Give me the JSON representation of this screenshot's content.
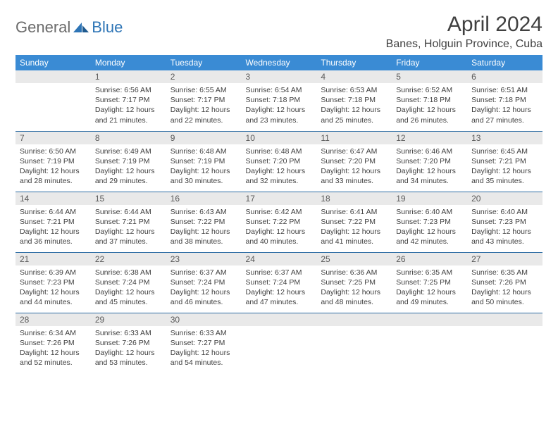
{
  "brand": {
    "general": "General",
    "blue": "Blue"
  },
  "title": "April 2024",
  "location": "Banes, Holguin Province, Cuba",
  "colors": {
    "header_bg": "#3a8bd4",
    "header_text": "#ffffff",
    "daynum_bg": "#e9e9e9",
    "text": "#404040",
    "rule": "#2e6da4"
  },
  "weekdays": [
    "Sunday",
    "Monday",
    "Tuesday",
    "Wednesday",
    "Thursday",
    "Friday",
    "Saturday"
  ],
  "weeks": [
    [
      {
        "n": "",
        "lines": [
          "",
          "",
          "",
          ""
        ]
      },
      {
        "n": "1",
        "lines": [
          "Sunrise: 6:56 AM",
          "Sunset: 7:17 PM",
          "Daylight: 12 hours",
          "and 21 minutes."
        ]
      },
      {
        "n": "2",
        "lines": [
          "Sunrise: 6:55 AM",
          "Sunset: 7:17 PM",
          "Daylight: 12 hours",
          "and 22 minutes."
        ]
      },
      {
        "n": "3",
        "lines": [
          "Sunrise: 6:54 AM",
          "Sunset: 7:18 PM",
          "Daylight: 12 hours",
          "and 23 minutes."
        ]
      },
      {
        "n": "4",
        "lines": [
          "Sunrise: 6:53 AM",
          "Sunset: 7:18 PM",
          "Daylight: 12 hours",
          "and 25 minutes."
        ]
      },
      {
        "n": "5",
        "lines": [
          "Sunrise: 6:52 AM",
          "Sunset: 7:18 PM",
          "Daylight: 12 hours",
          "and 26 minutes."
        ]
      },
      {
        "n": "6",
        "lines": [
          "Sunrise: 6:51 AM",
          "Sunset: 7:18 PM",
          "Daylight: 12 hours",
          "and 27 minutes."
        ]
      }
    ],
    [
      {
        "n": "7",
        "lines": [
          "Sunrise: 6:50 AM",
          "Sunset: 7:19 PM",
          "Daylight: 12 hours",
          "and 28 minutes."
        ]
      },
      {
        "n": "8",
        "lines": [
          "Sunrise: 6:49 AM",
          "Sunset: 7:19 PM",
          "Daylight: 12 hours",
          "and 29 minutes."
        ]
      },
      {
        "n": "9",
        "lines": [
          "Sunrise: 6:48 AM",
          "Sunset: 7:19 PM",
          "Daylight: 12 hours",
          "and 30 minutes."
        ]
      },
      {
        "n": "10",
        "lines": [
          "Sunrise: 6:48 AM",
          "Sunset: 7:20 PM",
          "Daylight: 12 hours",
          "and 32 minutes."
        ]
      },
      {
        "n": "11",
        "lines": [
          "Sunrise: 6:47 AM",
          "Sunset: 7:20 PM",
          "Daylight: 12 hours",
          "and 33 minutes."
        ]
      },
      {
        "n": "12",
        "lines": [
          "Sunrise: 6:46 AM",
          "Sunset: 7:20 PM",
          "Daylight: 12 hours",
          "and 34 minutes."
        ]
      },
      {
        "n": "13",
        "lines": [
          "Sunrise: 6:45 AM",
          "Sunset: 7:21 PM",
          "Daylight: 12 hours",
          "and 35 minutes."
        ]
      }
    ],
    [
      {
        "n": "14",
        "lines": [
          "Sunrise: 6:44 AM",
          "Sunset: 7:21 PM",
          "Daylight: 12 hours",
          "and 36 minutes."
        ]
      },
      {
        "n": "15",
        "lines": [
          "Sunrise: 6:44 AM",
          "Sunset: 7:21 PM",
          "Daylight: 12 hours",
          "and 37 minutes."
        ]
      },
      {
        "n": "16",
        "lines": [
          "Sunrise: 6:43 AM",
          "Sunset: 7:22 PM",
          "Daylight: 12 hours",
          "and 38 minutes."
        ]
      },
      {
        "n": "17",
        "lines": [
          "Sunrise: 6:42 AM",
          "Sunset: 7:22 PM",
          "Daylight: 12 hours",
          "and 40 minutes."
        ]
      },
      {
        "n": "18",
        "lines": [
          "Sunrise: 6:41 AM",
          "Sunset: 7:22 PM",
          "Daylight: 12 hours",
          "and 41 minutes."
        ]
      },
      {
        "n": "19",
        "lines": [
          "Sunrise: 6:40 AM",
          "Sunset: 7:23 PM",
          "Daylight: 12 hours",
          "and 42 minutes."
        ]
      },
      {
        "n": "20",
        "lines": [
          "Sunrise: 6:40 AM",
          "Sunset: 7:23 PM",
          "Daylight: 12 hours",
          "and 43 minutes."
        ]
      }
    ],
    [
      {
        "n": "21",
        "lines": [
          "Sunrise: 6:39 AM",
          "Sunset: 7:23 PM",
          "Daylight: 12 hours",
          "and 44 minutes."
        ]
      },
      {
        "n": "22",
        "lines": [
          "Sunrise: 6:38 AM",
          "Sunset: 7:24 PM",
          "Daylight: 12 hours",
          "and 45 minutes."
        ]
      },
      {
        "n": "23",
        "lines": [
          "Sunrise: 6:37 AM",
          "Sunset: 7:24 PM",
          "Daylight: 12 hours",
          "and 46 minutes."
        ]
      },
      {
        "n": "24",
        "lines": [
          "Sunrise: 6:37 AM",
          "Sunset: 7:24 PM",
          "Daylight: 12 hours",
          "and 47 minutes."
        ]
      },
      {
        "n": "25",
        "lines": [
          "Sunrise: 6:36 AM",
          "Sunset: 7:25 PM",
          "Daylight: 12 hours",
          "and 48 minutes."
        ]
      },
      {
        "n": "26",
        "lines": [
          "Sunrise: 6:35 AM",
          "Sunset: 7:25 PM",
          "Daylight: 12 hours",
          "and 49 minutes."
        ]
      },
      {
        "n": "27",
        "lines": [
          "Sunrise: 6:35 AM",
          "Sunset: 7:26 PM",
          "Daylight: 12 hours",
          "and 50 minutes."
        ]
      }
    ],
    [
      {
        "n": "28",
        "lines": [
          "Sunrise: 6:34 AM",
          "Sunset: 7:26 PM",
          "Daylight: 12 hours",
          "and 52 minutes."
        ]
      },
      {
        "n": "29",
        "lines": [
          "Sunrise: 6:33 AM",
          "Sunset: 7:26 PM",
          "Daylight: 12 hours",
          "and 53 minutes."
        ]
      },
      {
        "n": "30",
        "lines": [
          "Sunrise: 6:33 AM",
          "Sunset: 7:27 PM",
          "Daylight: 12 hours",
          "and 54 minutes."
        ]
      },
      {
        "n": "",
        "lines": [
          "",
          "",
          "",
          ""
        ]
      },
      {
        "n": "",
        "lines": [
          "",
          "",
          "",
          ""
        ]
      },
      {
        "n": "",
        "lines": [
          "",
          "",
          "",
          ""
        ]
      },
      {
        "n": "",
        "lines": [
          "",
          "",
          "",
          ""
        ]
      }
    ]
  ]
}
